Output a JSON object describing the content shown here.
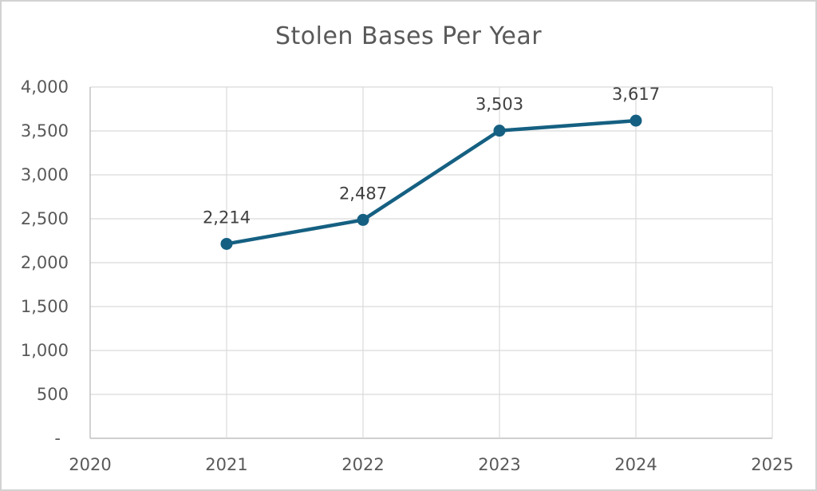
{
  "chart_data": {
    "type": "line",
    "title": "Stolen Bases Per Year",
    "x": [
      2021,
      2022,
      2023,
      2024
    ],
    "values": [
      2214,
      2487,
      3503,
      3617
    ],
    "point_labels": [
      "2,214",
      "2,487",
      "3,503",
      "3,617"
    ],
    "xlim": [
      2020,
      2025
    ],
    "ylim": [
      0,
      4000
    ],
    "x_ticks": [
      {
        "value": 2020,
        "label": "2020"
      },
      {
        "value": 2021,
        "label": "2021"
      },
      {
        "value": 2022,
        "label": "2022"
      },
      {
        "value": 2023,
        "label": "2023"
      },
      {
        "value": 2024,
        "label": "2024"
      },
      {
        "value": 2025,
        "label": "2025"
      }
    ],
    "y_ticks": [
      {
        "value": 0,
        "label": "-"
      },
      {
        "value": 500,
        "label": "500"
      },
      {
        "value": 1000,
        "label": "1,000"
      },
      {
        "value": 1500,
        "label": "1,500"
      },
      {
        "value": 2000,
        "label": "2,000"
      },
      {
        "value": 2500,
        "label": "2,500"
      },
      {
        "value": 3000,
        "label": "3,000"
      },
      {
        "value": 3500,
        "label": "3,500"
      },
      {
        "value": 4000,
        "label": "4,000"
      }
    ],
    "grid": true,
    "legend": "none",
    "colors": {
      "line": "#156082",
      "marker": "#156082",
      "grid": "#dadada",
      "axis": "#bfbfbf",
      "title_text": "#595959",
      "tick_text": "#595959",
      "data_label_text": "#404040"
    }
  }
}
